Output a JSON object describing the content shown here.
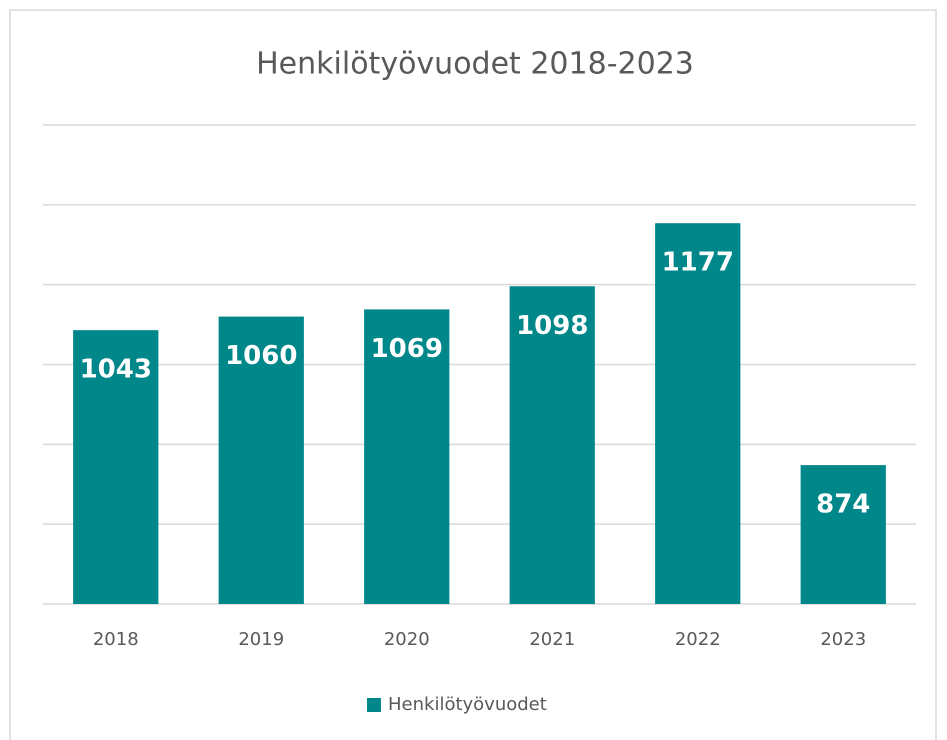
{
  "chart_data": {
    "type": "bar",
    "title": "Henkilötyövuodet 2018-2023",
    "categories": [
      "2018",
      "2019",
      "2020",
      "2021",
      "2022",
      "2023"
    ],
    "series": [
      {
        "name": "Henkilötyövuodet",
        "color": "#00878a",
        "values": [
          1043,
          1060,
          1069,
          1098,
          1177,
          874
        ]
      }
    ],
    "ylim": [
      700,
      1300
    ],
    "yticks": [
      700,
      800,
      900,
      1000,
      1100,
      1200,
      1300
    ],
    "grid": true,
    "legend": "bottom"
  }
}
